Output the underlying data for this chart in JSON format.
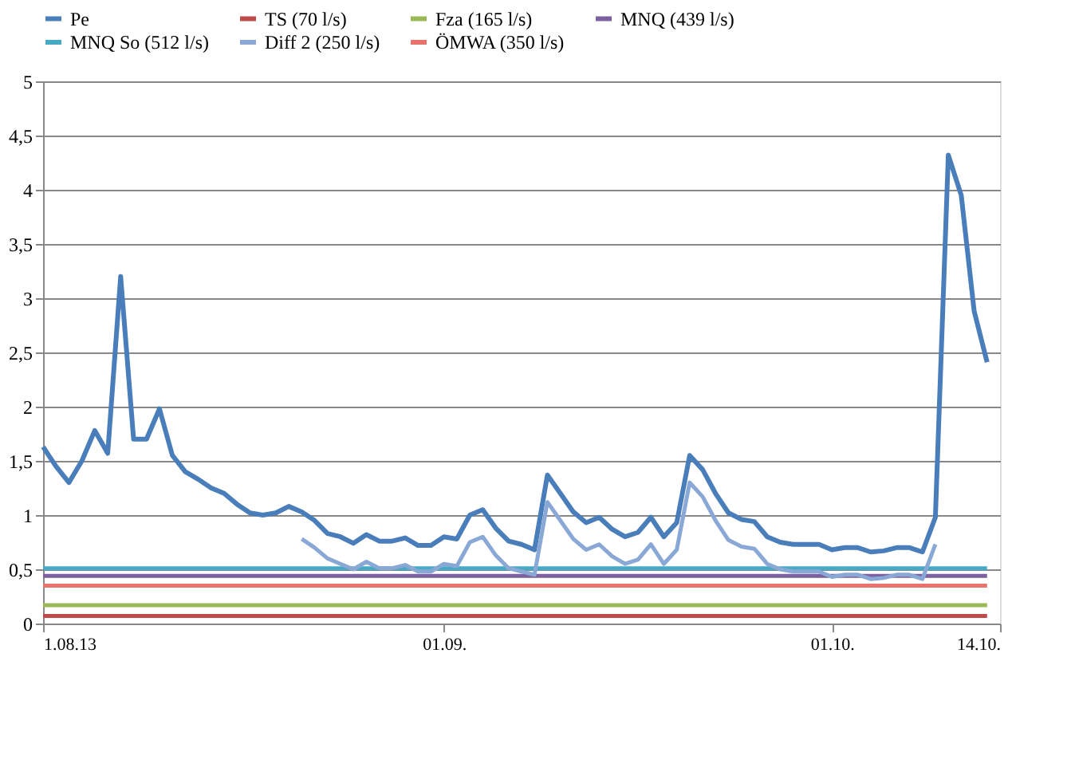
{
  "chart_data": {
    "type": "line",
    "x": [
      "2013-08-01",
      "2013-08-02",
      "2013-08-03",
      "2013-08-04",
      "2013-08-05",
      "2013-08-06",
      "2013-08-07",
      "2013-08-08",
      "2013-08-09",
      "2013-08-10",
      "2013-08-11",
      "2013-08-12",
      "2013-08-13",
      "2013-08-14",
      "2013-08-15",
      "2013-08-16",
      "2013-08-17",
      "2013-08-18",
      "2013-08-19",
      "2013-08-20",
      "2013-08-21",
      "2013-08-22",
      "2013-08-23",
      "2013-08-24",
      "2013-08-25",
      "2013-08-26",
      "2013-08-27",
      "2013-08-28",
      "2013-08-29",
      "2013-08-30",
      "2013-08-31",
      "2013-09-01",
      "2013-09-02",
      "2013-09-03",
      "2013-09-04",
      "2013-09-05",
      "2013-09-06",
      "2013-09-07",
      "2013-09-08",
      "2013-09-09",
      "2013-09-10",
      "2013-09-11",
      "2013-09-12",
      "2013-09-13",
      "2013-09-14",
      "2013-09-15",
      "2013-09-16",
      "2013-09-17",
      "2013-09-18",
      "2013-09-19",
      "2013-09-20",
      "2013-09-21",
      "2013-09-22",
      "2013-09-23",
      "2013-09-24",
      "2013-09-25",
      "2013-09-26",
      "2013-09-27",
      "2013-09-28",
      "2013-09-29",
      "2013-09-30",
      "2013-10-01",
      "2013-10-02",
      "2013-10-03",
      "2013-10-04",
      "2013-10-05",
      "2013-10-06",
      "2013-10-07",
      "2013-10-08",
      "2013-10-09",
      "2013-10-10",
      "2013-10-11",
      "2013-10-12",
      "2013-10-13"
    ],
    "series": [
      {
        "name": "Pe",
        "color": "#4a7ebb",
        "values": [
          1.63,
          1.45,
          1.3,
          1.5,
          1.78,
          1.57,
          3.2,
          1.7,
          1.7,
          1.98,
          1.55,
          1.4,
          1.33,
          1.25,
          1.2,
          1.1,
          1.02,
          1.0,
          1.02,
          1.08,
          1.03,
          0.95,
          0.83,
          0.8,
          0.74,
          0.82,
          0.76,
          0.76,
          0.79,
          0.72,
          0.72,
          0.8,
          0.78,
          1.0,
          1.05,
          0.88,
          0.76,
          0.73,
          0.68,
          1.37,
          1.2,
          1.03,
          0.93,
          0.98,
          0.87,
          0.8,
          0.84,
          0.98,
          0.8,
          0.93,
          1.55,
          1.42,
          1.2,
          1.02,
          0.96,
          0.94,
          0.8,
          0.75,
          0.73,
          0.73,
          0.73,
          0.68,
          0.7,
          0.7,
          0.66,
          0.67,
          0.7,
          0.7,
          0.66,
          0.98,
          4.32,
          3.95,
          2.88,
          2.41
        ]
      },
      {
        "name": "TS (70 l/s)",
        "color": "#be4b48",
        "x": [
          "2013-08-01",
          "2013-10-13"
        ],
        "values": [
          0.07,
          0.07
        ]
      },
      {
        "name": "Fza (165 l/s)",
        "color": "#98b954",
        "x": [
          "2013-08-01",
          "2013-10-13"
        ],
        "values": [
          0.17,
          0.17
        ]
      },
      {
        "name": "MNQ (439 l/s)",
        "color": "#7d60a0",
        "x": [
          "2013-08-01",
          "2013-10-13"
        ],
        "values": [
          0.44,
          0.44
        ]
      },
      {
        "name": "MNQ So (512 l/s)",
        "color": "#46aac5",
        "x": [
          "2013-08-01",
          "2013-10-13"
        ],
        "values": [
          0.51,
          0.51
        ]
      },
      {
        "name": "Diff 2 (250 l/s)",
        "color": "#8aa8d6",
        "values": [
          null,
          null,
          null,
          null,
          null,
          null,
          null,
          null,
          null,
          null,
          null,
          null,
          null,
          null,
          null,
          null,
          null,
          null,
          null,
          null,
          0.78,
          0.7,
          0.6,
          0.55,
          0.5,
          0.57,
          0.51,
          0.51,
          0.54,
          0.48,
          0.48,
          0.55,
          0.53,
          0.75,
          0.8,
          0.63,
          0.51,
          0.48,
          0.45,
          1.12,
          0.95,
          0.78,
          0.68,
          0.73,
          0.62,
          0.55,
          0.59,
          0.73,
          0.55,
          0.68,
          1.3,
          1.17,
          0.95,
          0.77,
          0.71,
          0.69,
          0.55,
          0.5,
          0.48,
          0.48,
          0.48,
          0.43,
          0.45,
          0.45,
          0.41,
          0.42,
          0.45,
          0.45,
          0.41,
          0.73,
          null,
          null,
          null,
          null
        ]
      },
      {
        "name": "ÖMWA (350 l/s)",
        "color": "#e8736c",
        "x": [
          "2013-08-01",
          "2013-10-13"
        ],
        "values": [
          0.35,
          0.35
        ]
      }
    ],
    "xlim": [
      "2013-08-01",
      "2013-10-14"
    ],
    "xticks": [
      {
        "value": "2013-08-01",
        "label": "1.08.13"
      },
      {
        "value": "2013-09-01",
        "label": "01.09."
      },
      {
        "value": "2013-10-01",
        "label": "01.10."
      },
      {
        "value": "2013-10-14",
        "label": "14.10."
      }
    ],
    "ylim": [
      0,
      5
    ],
    "yticks": [
      0,
      {
        "value": 0.5,
        "label": "0,5"
      },
      1,
      {
        "value": 1.5,
        "label": "1,5"
      },
      2,
      {
        "value": 2.5,
        "label": "2,5"
      },
      3,
      {
        "value": 3.5,
        "label": "3,5"
      },
      4,
      {
        "value": 4.5,
        "label": "4,5"
      },
      5
    ],
    "grid": "y",
    "legend": "top",
    "line_style": "solid",
    "marker": "none"
  }
}
